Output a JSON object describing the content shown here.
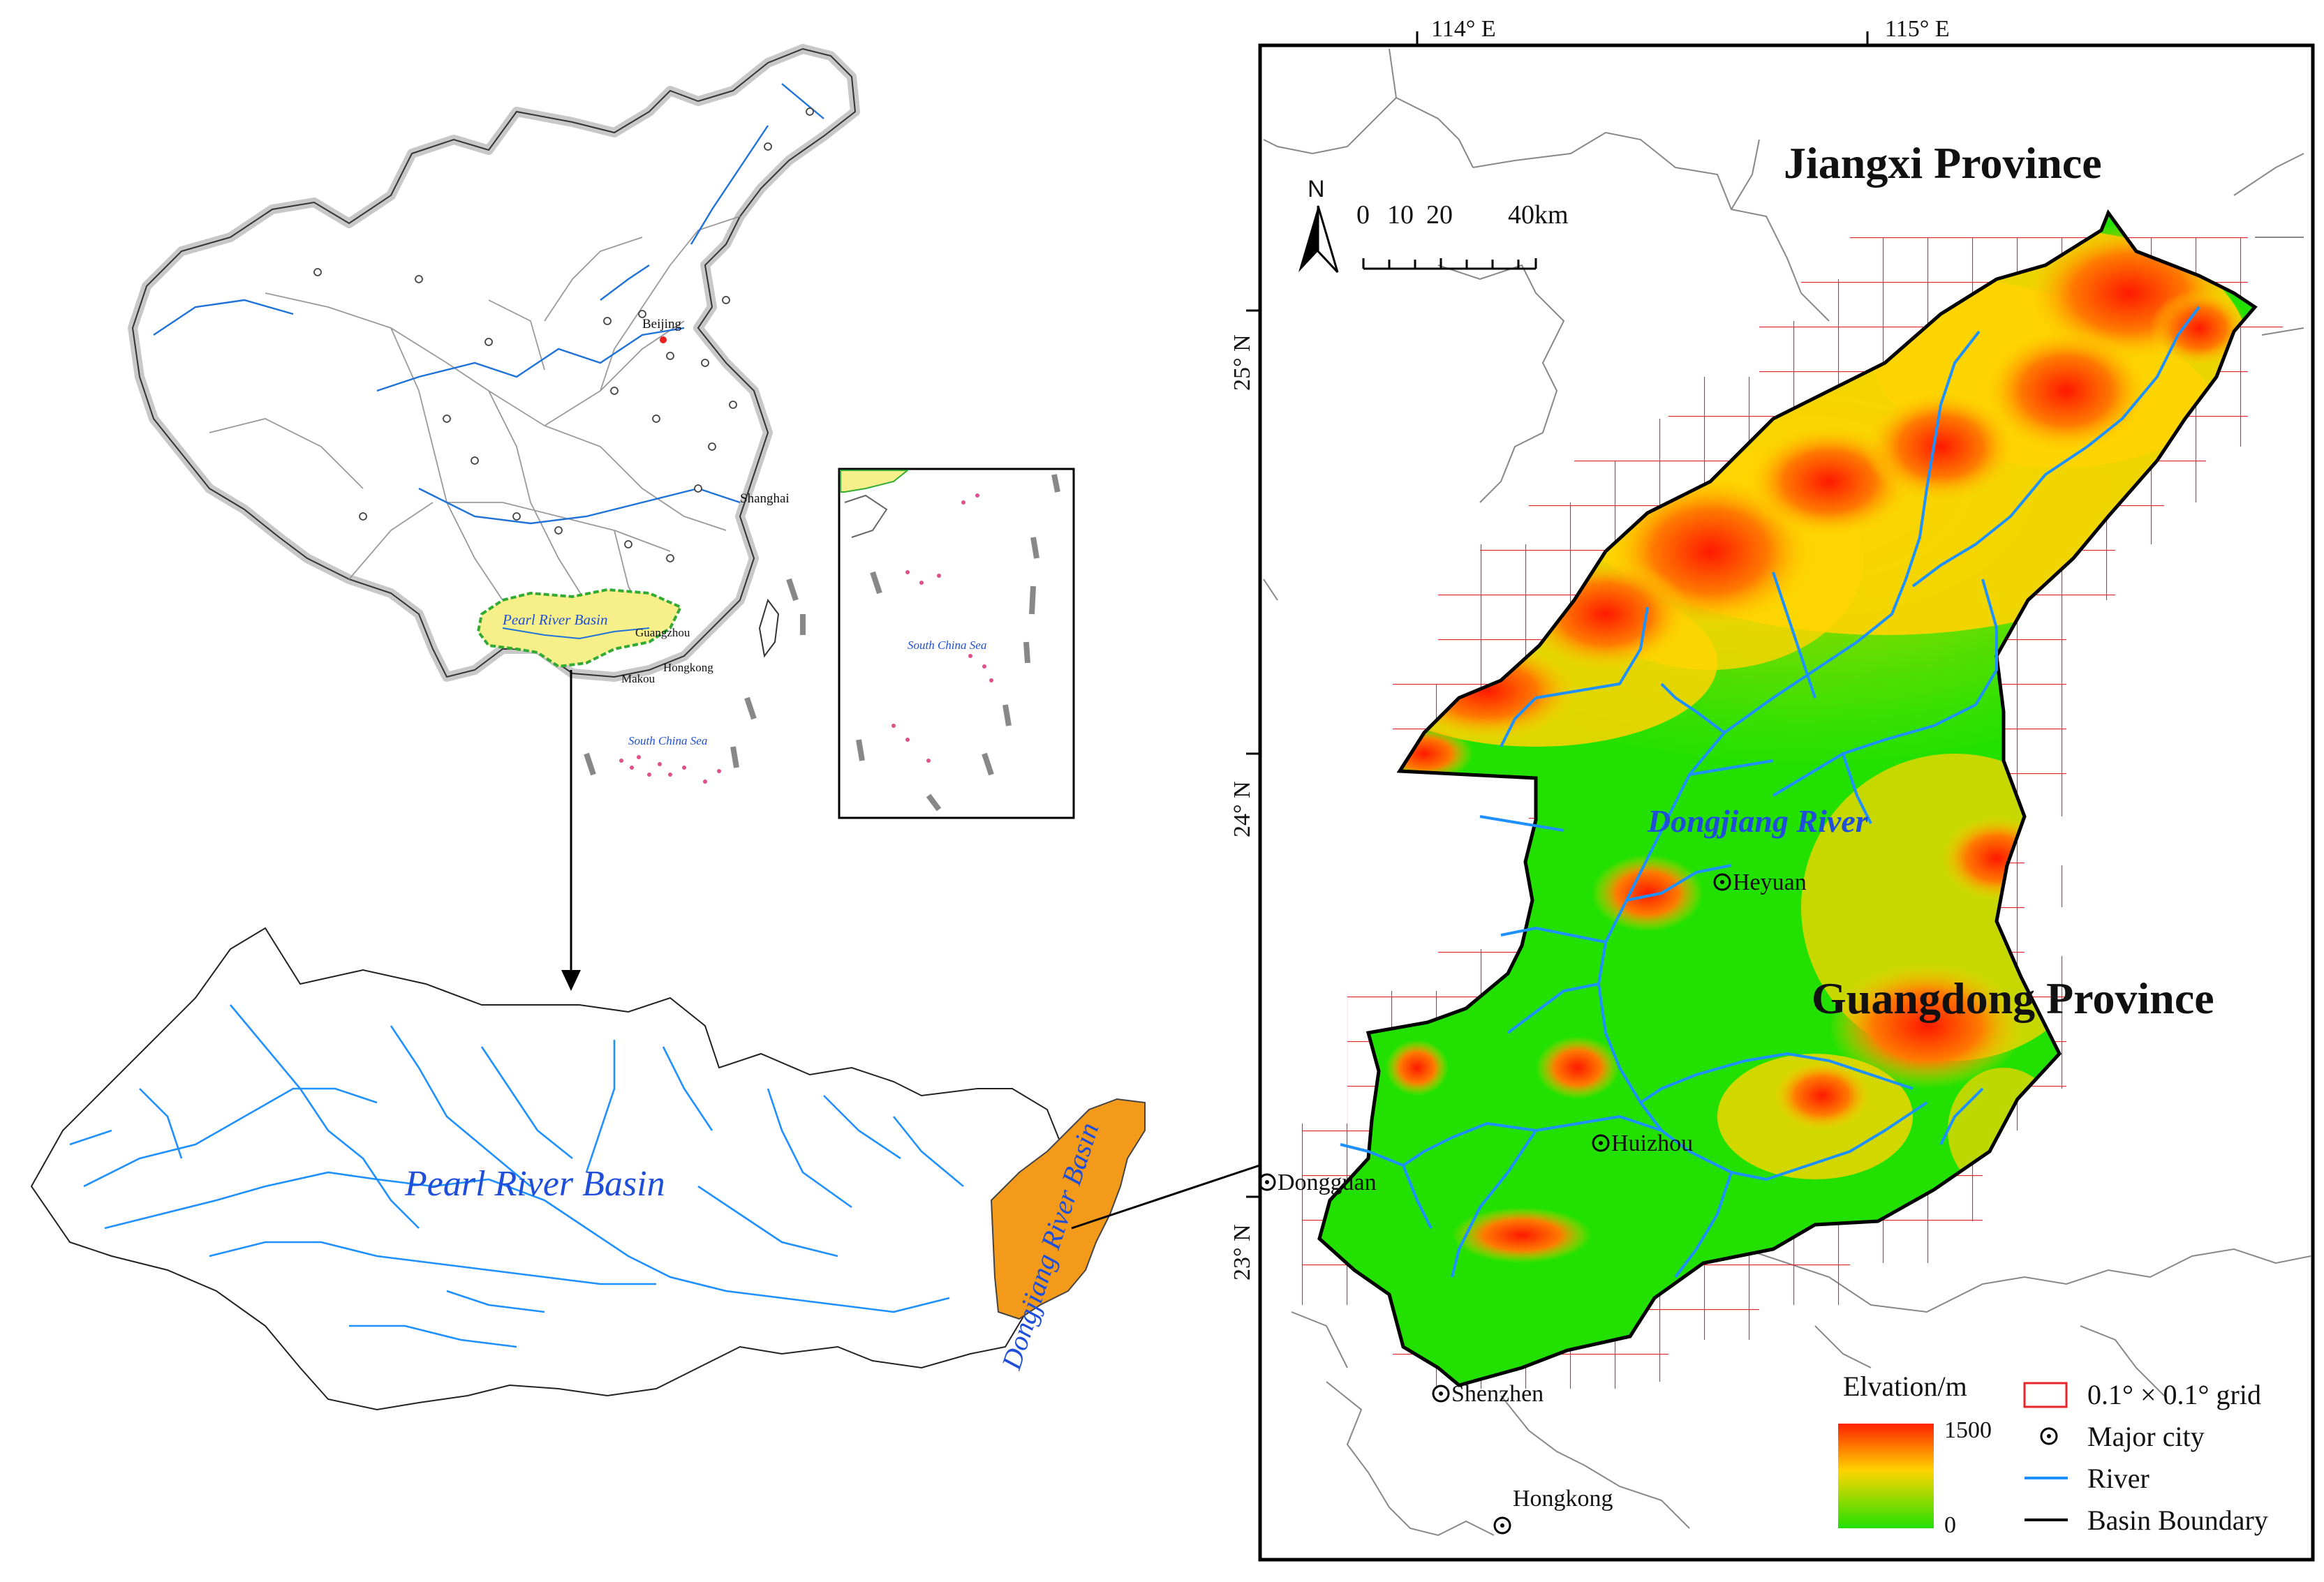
{
  "china_map": {
    "city_beijing": "Beijing",
    "city_shanghai": "Shanghai",
    "city_guangzhou": "Guangzhou",
    "city_hongkong": "Hongkong",
    "city_makou": "Makou",
    "basin_label": "Pearl River Basin",
    "sea_label": "South China Sea"
  },
  "inset_map": {
    "sea_label": "South China Sea"
  },
  "pearl_basin_map": {
    "title": "Pearl River Basin",
    "subbasin_label": "Dongjiang River Basin"
  },
  "detail_map": {
    "lon_labels": [
      "114° E",
      "115° E"
    ],
    "lat_labels": [
      "25° N",
      "24° N",
      "23° N"
    ],
    "north_letter": "N",
    "scale_labels": [
      "0",
      "10",
      "20",
      "40km"
    ],
    "province_jiangxi": "Jiangxi Province",
    "province_guangdong": "Guangdong Province",
    "river_label": "Dongjiang River",
    "cities": [
      "Heyuan",
      "Huizhou",
      "Dongguan",
      "Shenzhen",
      "Hongkong"
    ],
    "legend": {
      "elevation_title": "Elvation/m",
      "elevation_max": "1500",
      "elevation_min": "0",
      "grid": "0.1° × 0.1° grid",
      "city": "Major city",
      "river": "River",
      "boundary": "Basin Boundary"
    }
  },
  "colors": {
    "river": "#1e90ff",
    "river_dark": "#0a58c8",
    "basin_fill_yellow": "#f7f08a",
    "basin_fill_orange": "#f39a1a",
    "grid": "#e8242a",
    "elev_high": "#ff2200",
    "elev_mid": "#ffd400",
    "elev_low": "#22e000",
    "label_blue": "#1f4fd8"
  }
}
